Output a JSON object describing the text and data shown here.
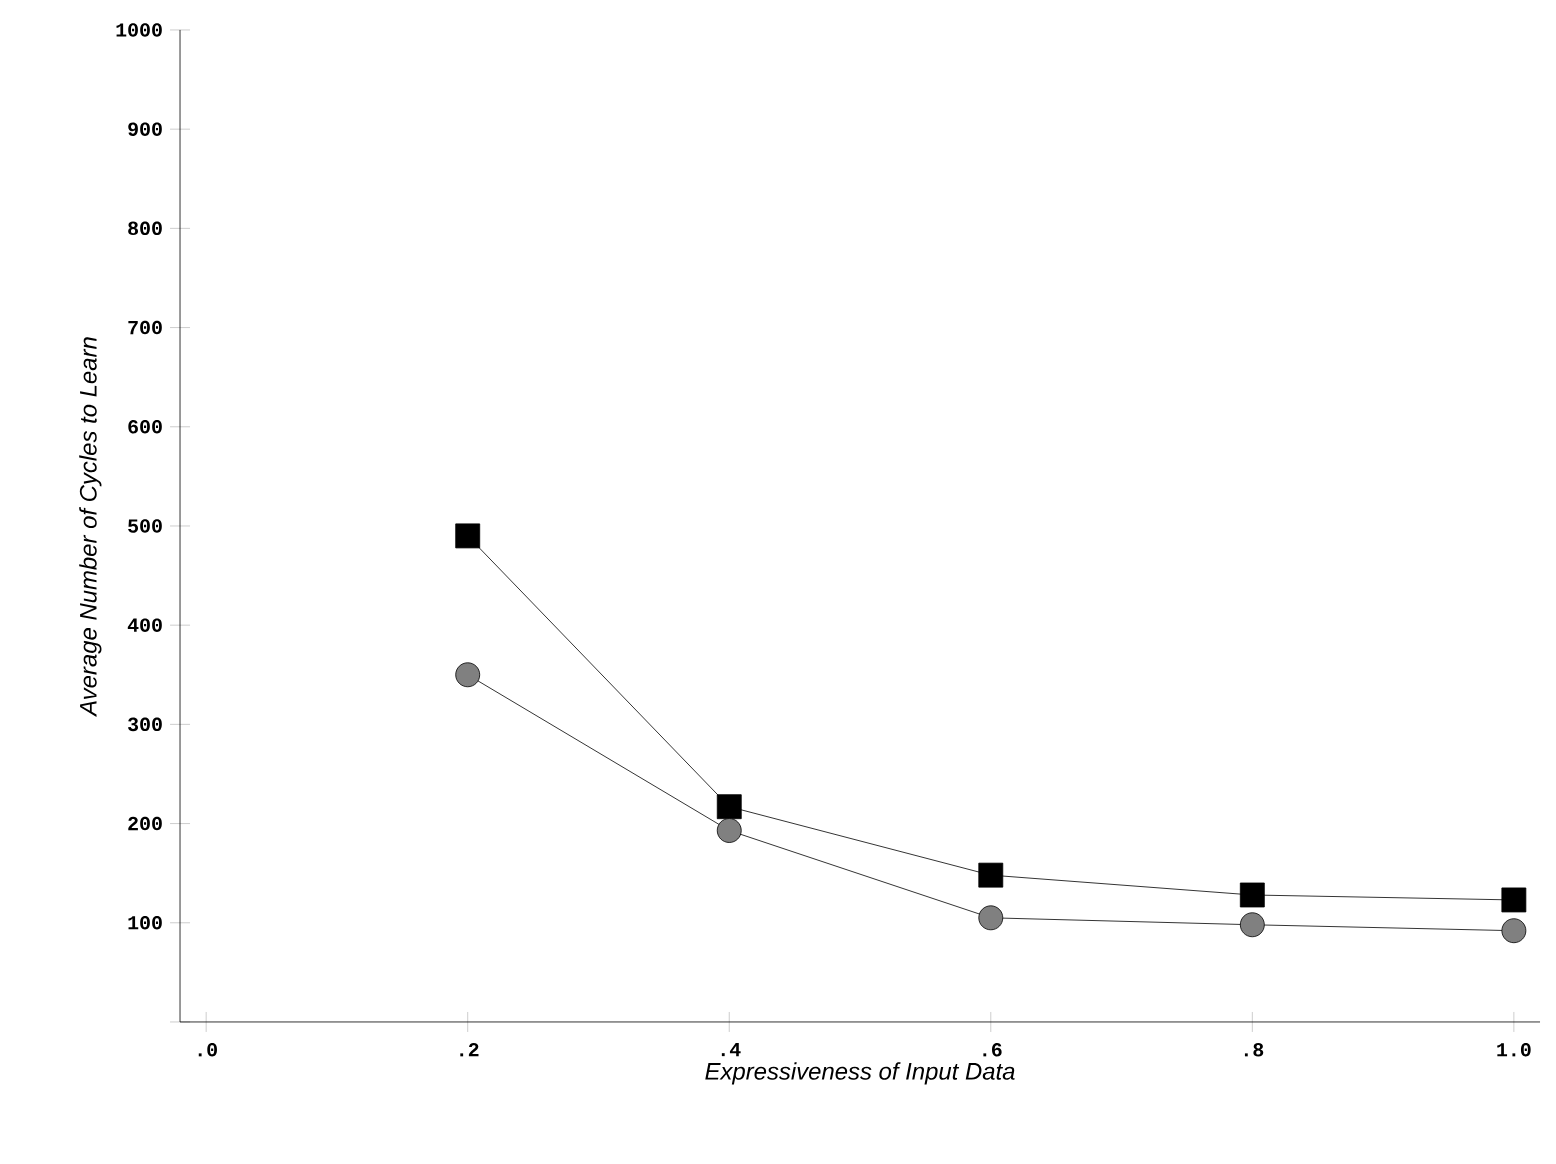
{
  "chart_data": {
    "type": "line",
    "xlabel": "Expressiveness of Input Data",
    "ylabel": "Average Number of Cycles to Learn",
    "x": [
      0.2,
      0.4,
      0.6,
      0.8,
      1.0
    ],
    "series": [
      {
        "color": "#000000",
        "marker": "square",
        "values": [
          490,
          217,
          148,
          128,
          123
        ]
      },
      {
        "color": "#808080",
        "marker": "circle",
        "values": [
          350,
          193,
          105,
          98,
          92
        ]
      }
    ],
    "xlim": [
      -0.02,
      1.02
    ],
    "ylim": [
      0,
      1000
    ],
    "xticks": [
      {
        "value": 0,
        "label": ".0"
      },
      {
        "value": 0.2,
        "label": ".2"
      },
      {
        "value": 0.4,
        "label": ".4"
      },
      {
        "value": 0.6,
        "label": ".6"
      },
      {
        "value": 0.8,
        "label": ".8"
      },
      {
        "value": 1.0,
        "label": "1.0"
      }
    ],
    "yticks": [
      {
        "value": 0,
        "label": null
      },
      100,
      200,
      300,
      400,
      500,
      600,
      700,
      800,
      900,
      1000
    ],
    "line_style": "solid"
  }
}
